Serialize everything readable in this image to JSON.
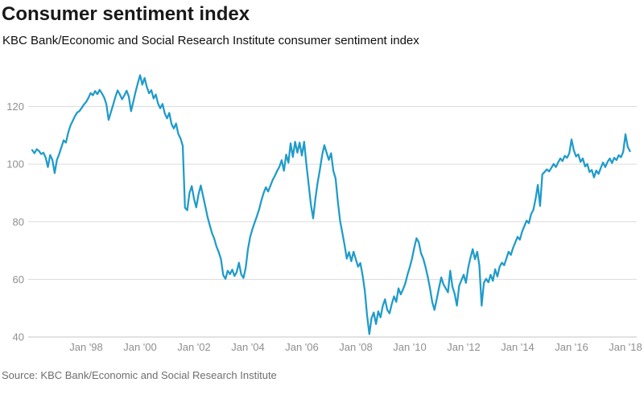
{
  "header": {
    "title": "Consumer sentiment index",
    "subtitle": "KBC Bank/Economic and Social Research Institute consumer sentiment index"
  },
  "footer": {
    "source": "Source: KBC Bank/Economic and Social Research Institute"
  },
  "chart_data": {
    "type": "line",
    "title": "Consumer sentiment index",
    "series_name": "KBC Bank/Economic and Social Research Institute consumer sentiment index",
    "start": "1996-01",
    "end": "2018-03",
    "frequency": "monthly",
    "line_color": "#1f9bca",
    "grid": true,
    "legend": false,
    "ylim": [
      40,
      132
    ],
    "y_ticks": [
      40,
      60,
      80,
      100,
      120
    ],
    "x_ticks": [
      {
        "label": "Jan '98",
        "month_index": 24
      },
      {
        "label": "Jan '00",
        "month_index": 48
      },
      {
        "label": "Jan '02",
        "month_index": 72
      },
      {
        "label": "Jan '04",
        "month_index": 96
      },
      {
        "label": "Jan '06",
        "month_index": 120
      },
      {
        "label": "Jan '08",
        "month_index": 144
      },
      {
        "label": "Jan '10",
        "month_index": 168
      },
      {
        "label": "Jan '12",
        "month_index": 192
      },
      {
        "label": "Jan '14",
        "month_index": 216
      },
      {
        "label": "Jan '16",
        "month_index": 240
      },
      {
        "label": "Jan '18",
        "month_index": 264
      }
    ],
    "values": [
      104.9,
      103.8,
      105.2,
      104.6,
      103.5,
      104.0,
      102.2,
      99.0,
      103.2,
      101.5,
      96.9,
      101.5,
      103.5,
      105.9,
      108.3,
      107.5,
      110.9,
      113.4,
      115.0,
      116.6,
      117.9,
      118.4,
      119.5,
      120.7,
      121.6,
      123.0,
      124.7,
      123.9,
      125.4,
      124.3,
      125.8,
      124.6,
      123.2,
      120.9,
      115.4,
      118.0,
      120.6,
      123.3,
      125.6,
      124.2,
      122.5,
      123.9,
      125.5,
      123.5,
      118.4,
      121.7,
      125.1,
      128.1,
      130.9,
      127.6,
      129.9,
      126.8,
      124.6,
      125.7,
      122.8,
      124.2,
      121.1,
      119.4,
      120.9,
      117.6,
      115.9,
      117.8,
      113.9,
      112.4,
      114.1,
      110.5,
      108.9,
      106.4,
      84.9,
      84.0,
      90.0,
      92.4,
      88.0,
      85.0,
      89.5,
      92.6,
      89.0,
      85.4,
      81.7,
      78.9,
      76.1,
      74.2,
      71.4,
      69.5,
      67.0,
      61.5,
      60.2,
      63.0,
      61.8,
      63.4,
      61.2,
      62.5,
      65.8,
      61.8,
      60.5,
      64.0,
      70.5,
      74.8,
      77.5,
      79.8,
      82.0,
      84.4,
      87.5,
      90.0,
      92.0,
      90.5,
      92.5,
      94.5,
      96.0,
      97.7,
      99.1,
      101.4,
      97.7,
      103.3,
      100.5,
      107.2,
      102.5,
      107.8,
      104.0,
      107.5,
      103.0,
      107.8,
      100.0,
      93.0,
      86.0,
      81.2,
      88.0,
      93.5,
      98.0,
      103.0,
      106.6,
      104.0,
      101.5,
      103.8,
      97.7,
      95.0,
      87.0,
      80.3,
      76.1,
      72.0,
      67.2,
      69.5,
      66.3,
      69.6,
      67.0,
      64.4,
      65.7,
      61.5,
      56.0,
      47.5,
      41.0,
      46.5,
      48.5,
      44.5,
      48.9,
      46.8,
      50.8,
      53.1,
      49.4,
      48.2,
      51.5,
      54.1,
      52.2,
      56.9,
      54.8,
      56.5,
      58.5,
      61.6,
      64.2,
      67.2,
      71.0,
      74.3,
      72.9,
      69.1,
      67.2,
      64.4,
      61.0,
      57.0,
      52.2,
      49.4,
      53.1,
      57.0,
      60.7,
      58.3,
      56.9,
      55.5,
      63.0,
      57.5,
      55.0,
      50.9,
      57.8,
      59.7,
      61.6,
      58.8,
      64.0,
      67.5,
      70.5,
      67.0,
      69.6,
      64.8,
      50.9,
      58.8,
      60.2,
      59.0,
      61.6,
      59.5,
      63.5,
      61.0,
      64.4,
      65.8,
      64.9,
      67.2,
      69.6,
      68.5,
      71.0,
      72.9,
      74.8,
      73.8,
      76.6,
      78.5,
      80.4,
      79.5,
      82.7,
      84.1,
      87.9,
      92.8,
      85.5,
      96.5,
      97.3,
      98.2,
      97.5,
      98.7,
      100.1,
      99.0,
      100.6,
      102.0,
      101.1,
      102.9,
      102.2,
      103.8,
      108.6,
      104.8,
      102.7,
      103.4,
      100.8,
      102.0,
      99.2,
      100.1,
      97.3,
      98.0,
      95.4,
      97.8,
      96.6,
      98.7,
      100.6,
      99.0,
      100.8,
      102.0,
      100.4,
      102.2,
      101.4,
      103.1,
      102.4,
      104.3,
      110.4,
      106.0,
      104.5
    ],
    "colors": {
      "title_text": "#191919",
      "subtitle_text": "#0e0e0e",
      "axis_label_text": "#8f8f8f",
      "source_text": "#6e6e6e",
      "gridline": "#dcdcdc",
      "baseline": "#c4c4c4"
    }
  }
}
